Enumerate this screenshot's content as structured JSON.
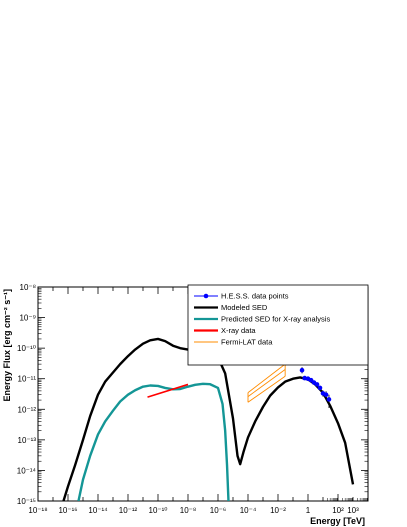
{
  "chart_data": {
    "type": "line",
    "title": "",
    "xlabel": "Energy [TeV]",
    "ylabel": "Energy Flux [erg cm⁻² s⁻¹]",
    "x_scale": "log",
    "y_scale": "log",
    "xlim": [
      1e-18,
      10000.0
    ],
    "ylim": [
      1e-15,
      1e-08
    ],
    "grid": false,
    "legend_position": "top-right",
    "x_ticks": [
      {
        "value": 1e-18,
        "label": "10⁻¹⁸"
      },
      {
        "value": 1e-16,
        "label": "10⁻¹⁶"
      },
      {
        "value": 1e-14,
        "label": "10⁻¹⁴"
      },
      {
        "value": 1e-12,
        "label": "10⁻¹²"
      },
      {
        "value": 1e-10,
        "label": "10⁻¹⁰"
      },
      {
        "value": 1e-08,
        "label": "10⁻⁸"
      },
      {
        "value": 1e-06,
        "label": "10⁻⁶"
      },
      {
        "value": 0.0001,
        "label": "10⁻⁴"
      },
      {
        "value": 0.01,
        "label": "10⁻²"
      },
      {
        "value": 1,
        "label": "1"
      },
      {
        "value": 100,
        "label": "10²"
      },
      {
        "value": 1000,
        "label": "10³"
      }
    ],
    "y_ticks": [
      {
        "value": 1e-15,
        "label": "10⁻¹⁵"
      },
      {
        "value": 1e-14,
        "label": "10⁻¹⁴"
      },
      {
        "value": 1e-13,
        "label": "10⁻¹³"
      },
      {
        "value": 1e-12,
        "label": "10⁻¹²"
      },
      {
        "value": 1e-11,
        "label": "10⁻¹¹"
      },
      {
        "value": 1e-10,
        "label": "10⁻¹⁰"
      },
      {
        "value": 1e-09,
        "label": "10⁻⁹"
      },
      {
        "value": 1e-08,
        "label": "10⁻⁸"
      }
    ],
    "series": [
      {
        "name": "H.E.S.S. data points",
        "kind": "points",
        "color": "#0000ff",
        "points": [
          {
            "x": 0.4,
            "y": 1.9e-11,
            "yerr_lo": 1.5e-11,
            "yerr_hi": 2.4e-11
          },
          {
            "x": 0.6,
            "y": 1.05e-11,
            "yerr_lo": 9.5e-12,
            "yerr_hi": 1.15e-11
          },
          {
            "x": 1.0,
            "y": 1e-11,
            "yerr_lo": 9.2e-12,
            "yerr_hi": 1.08e-11
          },
          {
            "x": 1.6,
            "y": 9e-12,
            "yerr_lo": 8.2e-12,
            "yerr_hi": 9.8e-12
          },
          {
            "x": 2.5,
            "y": 7.5e-12,
            "yerr_lo": 6.7e-12,
            "yerr_hi": 8.3e-12
          },
          {
            "x": 4.0,
            "y": 6.5e-12,
            "yerr_lo": 5.7e-12,
            "yerr_hi": 7.4e-12
          },
          {
            "x": 6.3,
            "y": 5e-12,
            "yerr_lo": 4.2e-12,
            "yerr_hi": 5.9e-12
          },
          {
            "x": 10,
            "y": 3.3e-12,
            "yerr_lo": 2.6e-12,
            "yerr_hi": 4.1e-12
          },
          {
            "x": 16,
            "y": 3e-12,
            "yerr_lo": 2.2e-12,
            "yerr_hi": 3.9e-12
          },
          {
            "x": 25,
            "y": 2.1e-12,
            "yerr_lo": 1.1e-12,
            "yerr_hi": 3e-12
          }
        ]
      },
      {
        "name": "Modeled SED",
        "kind": "line",
        "color": "#000000",
        "x": [
          5e-17,
          1e-16,
          3e-16,
          1e-15,
          3e-15,
          1e-14,
          3e-14,
          1e-13,
          3e-13,
          1e-12,
          3e-12,
          1e-11,
          3e-11,
          1e-10,
          3e-10,
          1e-09,
          3e-09,
          1e-08,
          3e-08,
          1e-07,
          3e-07,
          1e-06,
          3e-06,
          1e-05,
          2e-05,
          3e-05,
          5e-05,
          0.0001,
          0.0003,
          0.001,
          0.003,
          0.01,
          0.03,
          0.1,
          0.3,
          1,
          3,
          10,
          30,
          100,
          300,
          1000
        ],
        "values": [
          1e-15,
          3e-15,
          1.5e-14,
          1e-13,
          6e-13,
          3e-12,
          8e-12,
          1.6e-11,
          3e-11,
          5.5e-11,
          9e-11,
          1.4e-10,
          1.8e-10,
          2e-10,
          1.7e-10,
          1.2e-10,
          1e-10,
          9e-11,
          8.5e-11,
          8e-11,
          7e-11,
          5e-11,
          1.5e-11,
          5e-13,
          3e-14,
          1.6e-14,
          4e-14,
          1.2e-13,
          4e-13,
          1.2e-12,
          2.8e-12,
          5.2e-12,
          8e-12,
          1e-11,
          1.1e-11,
          9.5e-12,
          6.5e-12,
          3.5e-12,
          1.3e-12,
          3.5e-13,
          8e-14,
          3.5e-15
        ]
      },
      {
        "name": "Predicted SED for X-ray analysis",
        "kind": "line",
        "color": "#149696",
        "x": [
          5e-16,
          1e-15,
          3e-15,
          1e-14,
          3e-14,
          1e-13,
          3e-13,
          1e-12,
          3e-12,
          1e-11,
          3e-11,
          1e-10,
          3e-10,
          1e-09,
          3e-09,
          1e-08,
          3e-08,
          1e-07,
          3e-07,
          1e-06,
          2e-06,
          3e-06,
          4e-06,
          5e-06
        ],
        "values": [
          1e-15,
          5e-15,
          3e-14,
          1.5e-13,
          4e-13,
          9e-13,
          1.8e-12,
          3e-12,
          4.2e-12,
          5.5e-12,
          6e-12,
          5.8e-12,
          5e-12,
          4.5e-12,
          4.6e-12,
          5.5e-12,
          6.3e-12,
          6.8e-12,
          6.6e-12,
          5e-12,
          1.5e-12,
          2e-13,
          1.5e-14,
          1e-15
        ]
      },
      {
        "name": "X-ray data",
        "kind": "line",
        "color": "#ff0000",
        "x": [
          2e-11,
          1e-08
        ],
        "values": [
          2.5e-12,
          6.5e-12
        ]
      },
      {
        "name": "Fermi-LAT data",
        "kind": "band",
        "color": "#ff8c00",
        "x": [
          0.0001,
          0.03
        ],
        "lower": [
          1.7e-12,
          1.2e-11
        ],
        "upper": [
          3.5e-12,
          3e-11
        ],
        "mid": [
          2.6e-12,
          2e-11
        ]
      }
    ]
  }
}
